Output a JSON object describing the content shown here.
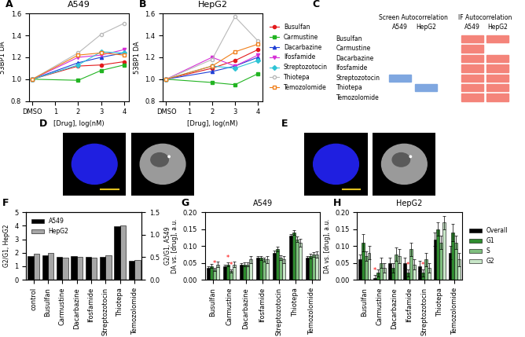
{
  "chart_data": [
    {
      "panel": "A",
      "type": "line",
      "title": "A549",
      "x_label": "[Drug], log(nM)",
      "y_label": "53BP1 DA",
      "x": [
        0,
        2,
        3,
        4
      ],
      "xlim": [
        -0.15,
        4.2
      ],
      "xticks": [
        {
          "value": 0,
          "label": "DMSO"
        },
        1,
        2,
        3,
        4
      ],
      "ylim": [
        0.8,
        1.6
      ],
      "yticks": [
        0.8,
        1.0,
        1.2,
        1.4,
        1.6
      ],
      "series": [
        {
          "name": "Busulfan",
          "color": "#e31a1c",
          "marker": "circle",
          "line_style": "solid",
          "values": [
            1.0,
            1.12,
            1.13,
            1.16
          ]
        },
        {
          "name": "Carmustine",
          "color": "#22b422",
          "marker": "square",
          "line_style": "solid",
          "values": [
            1.0,
            0.99,
            1.08,
            1.13
          ]
        },
        {
          "name": "Dacarbazine",
          "color": "#1f3fd6",
          "marker": "triangle",
          "line_style": "solid",
          "values": [
            1.0,
            1.15,
            1.2,
            1.24
          ]
        },
        {
          "name": "Ifosfamide",
          "color": "#d62fd6",
          "marker": "triangle_down",
          "line_style": "solid",
          "values": [
            1.0,
            1.2,
            1.22,
            1.27
          ]
        },
        {
          "name": "Streptozotocin",
          "color": "#2ec4d6",
          "marker": "diamond",
          "line_style": "solid",
          "values": [
            1.0,
            1.13,
            1.25,
            1.24
          ]
        },
        {
          "name": "Thiotepa",
          "color": "#b8b8b8",
          "marker": "open_circle",
          "line_style": "solid",
          "values": [
            1.0,
            1.24,
            1.41,
            1.51
          ]
        },
        {
          "name": "Temozolomide",
          "color": "#f07f1a",
          "marker": "open_square",
          "line_style": "solid",
          "values": [
            1.0,
            1.22,
            1.24,
            1.22
          ]
        }
      ]
    },
    {
      "panel": "B",
      "type": "line",
      "title": "HepG2",
      "x_label": "[Drug], log(nM)",
      "y_label": "53BP1 DA",
      "x": [
        0,
        2,
        3,
        4
      ],
      "xlim": [
        -0.15,
        4.2
      ],
      "xticks": [
        {
          "value": 0,
          "label": "DMSO"
        },
        1,
        2,
        3,
        4
      ],
      "ylim": [
        0.8,
        1.6
      ],
      "yticks": [
        0.8,
        1.0,
        1.2,
        1.4,
        1.6
      ],
      "legend": "center left",
      "series": [
        {
          "name": "Busulfan",
          "color": "#e31a1c",
          "marker": "circle",
          "line_style": "solid",
          "values": [
            1.0,
            1.1,
            1.17,
            1.27
          ]
        },
        {
          "name": "Carmustine",
          "color": "#22b422",
          "marker": "square",
          "line_style": "solid",
          "values": [
            1.0,
            0.97,
            0.95,
            1.05
          ]
        },
        {
          "name": "Dacarbazine",
          "color": "#1f3fd6",
          "marker": "triangle",
          "line_style": "solid",
          "values": [
            1.0,
            1.07,
            1.12,
            1.2
          ]
        },
        {
          "name": "Ifosfamide",
          "color": "#d62fd6",
          "marker": "triangle_down",
          "line_style": "solid",
          "values": [
            1.0,
            1.2,
            1.12,
            1.22
          ]
        },
        {
          "name": "Streptozotocin",
          "color": "#2ec4d6",
          "marker": "diamond",
          "line_style": "solid",
          "values": [
            1.0,
            1.12,
            1.1,
            1.17
          ]
        },
        {
          "name": "Thiotepa",
          "color": "#b8b8b8",
          "marker": "open_circle",
          "line_style": "solid",
          "values": [
            1.0,
            1.18,
            1.57,
            1.35
          ]
        },
        {
          "name": "Temozolomide",
          "color": "#f07f1a",
          "marker": "open_square",
          "line_style": "solid",
          "values": [
            1.0,
            1.12,
            1.25,
            1.32
          ]
        }
      ]
    },
    {
      "panel": "C",
      "type": "heatmap",
      "rows": [
        "Busulfan",
        "Carmustine",
        "Dacarbazine",
        "Ifosfamide",
        "Streptozotocin",
        "Thiotepa",
        "Temozolomide"
      ],
      "columns": [
        {
          "group": "Screen Autocorrelation",
          "name": "A549",
          "values": [
            0,
            0,
            0,
            0,
            -1,
            0,
            0
          ]
        },
        {
          "group": "Screen Autocorrelation",
          "name": "HepG2",
          "values": [
            0,
            0,
            0,
            0,
            0,
            -1,
            0
          ]
        },
        {
          "group": "IF Autocorrelation",
          "name": "A549",
          "values": [
            1,
            1,
            1,
            1,
            1,
            1,
            1
          ]
        },
        {
          "group": "IF Autocorrelation",
          "name": "HepG2",
          "values": [
            1,
            0,
            1,
            1,
            1,
            1,
            1
          ]
        }
      ]
    },
    {
      "panel": "D",
      "type": "image"
    },
    {
      "panel": "E",
      "type": "image"
    },
    {
      "panel": "F",
      "type": "bar",
      "y_label": "G2/G1, HepG2",
      "y2_label": "G2/G1, A549",
      "categories": [
        "control",
        "Busulfan",
        "Carmustine",
        "Dacarbazine",
        "Ifosfamide",
        "Streptozotocin",
        "Thiotepa",
        "Temozolomide"
      ],
      "ylim": [
        0,
        5
      ],
      "yticks": [
        0,
        1,
        2,
        3,
        4,
        5
      ],
      "y2lim": [
        0,
        1.5
      ],
      "y2ticks": [
        0.0,
        0.5,
        1.0,
        1.5
      ],
      "legend": "upper left",
      "series": [
        {
          "name": "A549",
          "color": "#000000",
          "axis": "y2",
          "values": [
            0.53,
            0.54,
            0.5,
            0.53,
            0.51,
            0.5,
            1.19,
            0.42
          ]
        },
        {
          "name": "HepG2",
          "color": "#a6a6a6",
          "values": [
            1.9,
            2.0,
            1.65,
            1.7,
            1.65,
            1.8,
            4.0,
            1.45
          ]
        }
      ]
    },
    {
      "panel": "G",
      "type": "bar",
      "title": "A549",
      "y_label": "DA vs. [drug], a.u.",
      "categories": [
        "Busulfan",
        "Carmustine",
        "Dacarbazine",
        "Ifosfamide",
        "Streptozotocin",
        "Thiotepa",
        "Temozolomide"
      ],
      "ylim": [
        0,
        0.2
      ],
      "yticks": [
        {
          "value": 0,
          "label": "0.00"
        },
        {
          "value": 0.05,
          "label": "0.05"
        },
        {
          "value": 0.1,
          "label": "0.10"
        },
        {
          "value": 0.15,
          "label": "0.15"
        },
        {
          "value": 0.2,
          "label": "0.20"
        }
      ],
      "series": [
        {
          "name": "Overall",
          "color": "#000000",
          "values": [
            0.035,
            0.04,
            0.045,
            0.065,
            0.08,
            0.13,
            0.065
          ],
          "errors": [
            0.005,
            0.005,
            0.005,
            0.005,
            0.006,
            0.005,
            0.005
          ]
        },
        {
          "name": "G1",
          "color": "#2e8b2e",
          "values": [
            0.04,
            0.045,
            0.045,
            0.065,
            0.09,
            0.14,
            0.07
          ],
          "errors": [
            0.006,
            0.006,
            0.006,
            0.006,
            0.007,
            0.008,
            0.007
          ]
        },
        {
          "name": "S",
          "color": "#7fbf7f",
          "values": [
            0.03,
            0.025,
            0.045,
            0.06,
            0.065,
            0.12,
            0.075
          ],
          "errors": [
            0.005,
            0.005,
            0.006,
            0.006,
            0.007,
            0.008,
            0.007
          ]
        },
        {
          "name": "G2",
          "color": "#c8e6c8",
          "values": [
            0.045,
            0.045,
            0.06,
            0.06,
            0.06,
            0.11,
            0.075
          ],
          "errors": [
            0.008,
            0.008,
            0.01,
            0.01,
            0.01,
            0.012,
            0.01
          ]
        }
      ],
      "annotations": [
        {
          "category": "Busulfan",
          "series": "S",
          "text": "*"
        },
        {
          "category": "Carmustine",
          "series": "G1",
          "text": "*"
        },
        {
          "category": "Carmustine",
          "series": "S",
          "text": "*"
        }
      ]
    },
    {
      "panel": "H",
      "type": "bar",
      "title": "HepG2",
      "y_label": "DA vs. [drug], a.u.",
      "legend": "center left",
      "categories": [
        "Busulfan",
        "Carmustine",
        "Dacarbazine",
        "Ifosfamide",
        "Streptozotocin",
        "Thiotepa",
        "Temozolomide"
      ],
      "ylim": [
        0,
        0.2
      ],
      "yticks": [
        {
          "value": 0,
          "label": "0.00"
        },
        {
          "value": 0.05,
          "label": "0.05"
        },
        {
          "value": 0.1,
          "label": "0.10"
        },
        {
          "value": 0.15,
          "label": "0.15"
        },
        {
          "value": 0.2,
          "label": "0.20"
        }
      ],
      "series": [
        {
          "name": "Overall",
          "color": "#000000",
          "values": [
            0.06,
            0.005,
            0.05,
            0.05,
            0.04,
            0.12,
            0.08
          ],
          "errors": [
            0.015,
            0.01,
            0.015,
            0.015,
            0.015,
            0.02,
            0.02
          ]
        },
        {
          "name": "G1",
          "color": "#2e8b2e",
          "values": [
            0.11,
            0.02,
            0.035,
            0.02,
            0.02,
            0.15,
            0.14
          ],
          "errors": [
            0.025,
            0.01,
            0.015,
            0.01,
            0.01,
            0.02,
            0.025
          ]
        },
        {
          "name": "S",
          "color": "#7fbf7f",
          "values": [
            0.07,
            0.05,
            0.075,
            0.09,
            0.06,
            0.11,
            0.11
          ],
          "errors": [
            0.015,
            0.015,
            0.02,
            0.02,
            0.02,
            0.02,
            0.02
          ]
        },
        {
          "name": "G2",
          "color": "#c8e6c8",
          "values": [
            0.08,
            0.035,
            0.07,
            0.045,
            0.035,
            0.17,
            0.06
          ],
          "errors": [
            0.02,
            0.015,
            0.02,
            0.015,
            0.015,
            0.02,
            0.02
          ]
        }
      ],
      "annotations": [
        {
          "category": "Carmustine",
          "series": "Overall",
          "text": "*"
        },
        {
          "category": "Ifosfamide",
          "series": "G1",
          "text": "*"
        },
        {
          "category": "Streptozotocin",
          "series": "G1",
          "text": "*"
        }
      ]
    }
  ]
}
